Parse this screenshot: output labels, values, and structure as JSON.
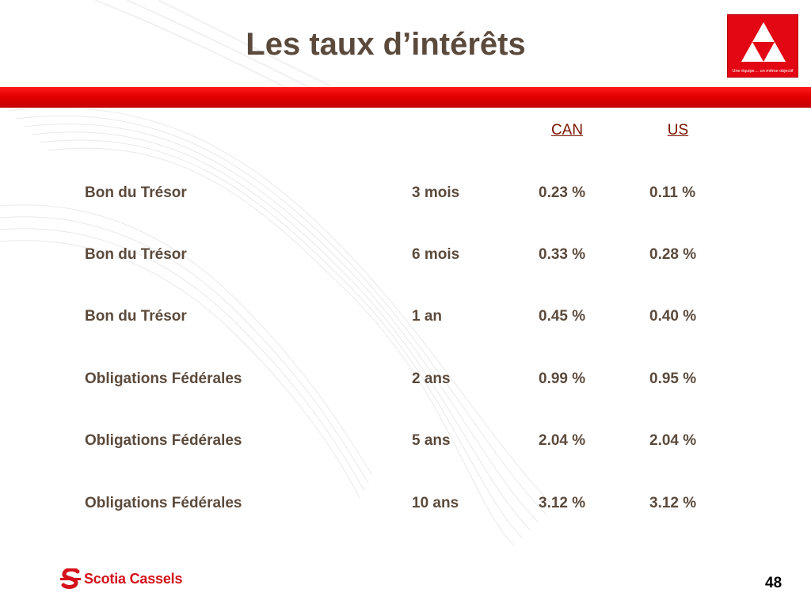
{
  "slide": {
    "title": "Les taux d’intérêts",
    "page_number": "48"
  },
  "header_logo": {
    "icon": "triangle-logo-icon",
    "tagline": "Une équipe… un même objectif",
    "color": "#e30613"
  },
  "table": {
    "columns": {
      "can": "CAN",
      "us": "US"
    },
    "rows": [
      {
        "instrument": "Bon du Trésor",
        "term": "3 mois",
        "can": "0.23 %",
        "us": "0.11 %"
      },
      {
        "instrument": "Bon du Trésor",
        "term": "6 mois",
        "can": "0.33 %",
        "us": "0.28 %"
      },
      {
        "instrument": "Bon du Trésor",
        "term": "1 an",
        "can": "0.45 %",
        "us": "0.40 %"
      },
      {
        "instrument": "Obligations Fédérales",
        "term": "2 ans",
        "can": "0.99 %",
        "us": "0.95 %"
      },
      {
        "instrument": "Obligations Fédérales",
        "term": "5 ans",
        "can": "2.04 %",
        "us": "2.04 %"
      },
      {
        "instrument": "Obligations Fédérales",
        "term": "10 ans",
        "can": "3.12 %",
        "us": "3.12 %"
      }
    ]
  },
  "footer": {
    "brand": "Scotia Cassels",
    "brand_icon": "scotia-s-icon",
    "brand_color": "#d4121b"
  },
  "theme": {
    "accent_red": "#e30000",
    "text_brown": "#5b4a3c",
    "header_brown": "#7a1500"
  }
}
